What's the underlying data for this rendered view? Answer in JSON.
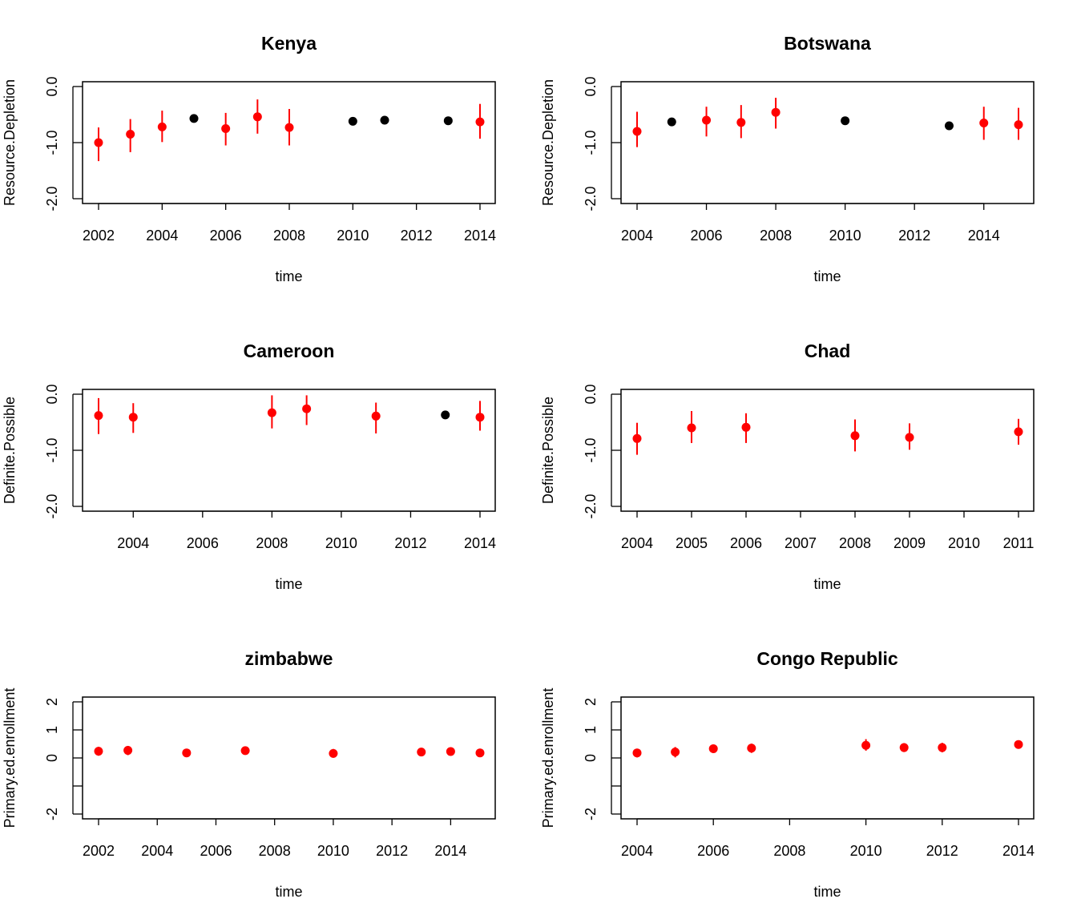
{
  "colors": {
    "highlight": "#ff0000",
    "normal": "#000000"
  },
  "chart_data": [
    {
      "type": "scatter",
      "title": "Kenya",
      "xlabel": "time",
      "ylabel": "Resource.Depletion",
      "xlim": [
        2002,
        2014
      ],
      "ylim": [
        -2.0,
        0.0
      ],
      "xticks": [
        2002,
        2004,
        2006,
        2008,
        2010,
        2012,
        2014
      ],
      "yticks": [
        -2.0,
        -1.0,
        0.0
      ],
      "ytick_labels": [
        "-2.0",
        "-1.0",
        "0.0"
      ],
      "points": [
        {
          "x": 2002,
          "y": -1.0,
          "lo": -1.33,
          "hi": -0.73,
          "color": "red"
        },
        {
          "x": 2003,
          "y": -0.85,
          "lo": -1.17,
          "hi": -0.58,
          "color": "red"
        },
        {
          "x": 2004,
          "y": -0.72,
          "lo": -0.99,
          "hi": -0.43,
          "color": "red"
        },
        {
          "x": 2005,
          "y": -0.57,
          "color": "black"
        },
        {
          "x": 2006,
          "y": -0.75,
          "lo": -1.05,
          "hi": -0.47,
          "color": "red"
        },
        {
          "x": 2007,
          "y": -0.54,
          "lo": -0.84,
          "hi": -0.23,
          "color": "red"
        },
        {
          "x": 2008,
          "y": -0.73,
          "lo": -1.05,
          "hi": -0.4,
          "color": "red"
        },
        {
          "x": 2010,
          "y": -0.62,
          "color": "black"
        },
        {
          "x": 2011,
          "y": -0.6,
          "color": "black"
        },
        {
          "x": 2013,
          "y": -0.61,
          "color": "black"
        },
        {
          "x": 2014,
          "y": -0.63,
          "lo": -0.93,
          "hi": -0.31,
          "color": "red"
        }
      ]
    },
    {
      "type": "scatter",
      "title": "Botswana",
      "xlabel": "time",
      "ylabel": "Resource.Depletion",
      "xlim": [
        2004,
        2015
      ],
      "ylim": [
        -2.0,
        0.0
      ],
      "xticks": [
        2004,
        2006,
        2008,
        2010,
        2012,
        2014
      ],
      "yticks": [
        -2.0,
        -1.0,
        0.0
      ],
      "ytick_labels": [
        "-2.0",
        "-1.0",
        "0.0"
      ],
      "points": [
        {
          "x": 2004,
          "y": -0.8,
          "lo": -1.08,
          "hi": -0.45,
          "color": "red"
        },
        {
          "x": 2005,
          "y": -0.63,
          "color": "black"
        },
        {
          "x": 2006,
          "y": -0.6,
          "lo": -0.89,
          "hi": -0.36,
          "color": "red"
        },
        {
          "x": 2007,
          "y": -0.64,
          "lo": -0.92,
          "hi": -0.33,
          "color": "red"
        },
        {
          "x": 2008,
          "y": -0.46,
          "lo": -0.75,
          "hi": -0.2,
          "color": "red"
        },
        {
          "x": 2010,
          "y": -0.61,
          "color": "black"
        },
        {
          "x": 2013,
          "y": -0.7,
          "color": "black"
        },
        {
          "x": 2014,
          "y": -0.65,
          "lo": -0.95,
          "hi": -0.36,
          "color": "red"
        },
        {
          "x": 2015,
          "y": -0.68,
          "lo": -0.95,
          "hi": -0.38,
          "color": "red"
        }
      ]
    },
    {
      "type": "scatter",
      "title": "Cameroon",
      "xlabel": "time",
      "ylabel": "Definite.Possible",
      "xlim": [
        2003,
        2014
      ],
      "ylim": [
        -2.0,
        0.0
      ],
      "xticks": [
        2004,
        2006,
        2008,
        2010,
        2012,
        2014
      ],
      "yticks": [
        -2.0,
        -1.0,
        0.0
      ],
      "ytick_labels": [
        "-2.0",
        "-1.0",
        "0.0"
      ],
      "points": [
        {
          "x": 2003,
          "y": -0.38,
          "lo": -0.71,
          "hi": -0.07,
          "color": "red"
        },
        {
          "x": 2004,
          "y": -0.41,
          "lo": -0.69,
          "hi": -0.16,
          "color": "red"
        },
        {
          "x": 2008,
          "y": -0.33,
          "lo": -0.61,
          "hi": -0.02,
          "color": "red"
        },
        {
          "x": 2009,
          "y": -0.26,
          "lo": -0.55,
          "hi": -0.02,
          "color": "red"
        },
        {
          "x": 2011,
          "y": -0.39,
          "lo": -0.7,
          "hi": -0.15,
          "color": "red"
        },
        {
          "x": 2013,
          "y": -0.37,
          "color": "black"
        },
        {
          "x": 2014,
          "y": -0.41,
          "lo": -0.65,
          "hi": -0.12,
          "color": "red"
        }
      ]
    },
    {
      "type": "scatter",
      "title": "Chad",
      "xlabel": "time",
      "ylabel": "Definite.Possible",
      "xlim": [
        2004,
        2011
      ],
      "ylim": [
        -2.0,
        0.0
      ],
      "xticks": [
        2004,
        2005,
        2006,
        2007,
        2008,
        2009,
        2010,
        2011
      ],
      "yticks": [
        -2.0,
        -1.0,
        0.0
      ],
      "ytick_labels": [
        "-2.0",
        "-1.0",
        "0.0"
      ],
      "points": [
        {
          "x": 2004,
          "y": -0.79,
          "lo": -1.08,
          "hi": -0.51,
          "color": "red"
        },
        {
          "x": 2005,
          "y": -0.6,
          "lo": -0.87,
          "hi": -0.3,
          "color": "red"
        },
        {
          "x": 2006,
          "y": -0.59,
          "lo": -0.87,
          "hi": -0.34,
          "color": "red"
        },
        {
          "x": 2008,
          "y": -0.74,
          "lo": -1.02,
          "hi": -0.45,
          "color": "red"
        },
        {
          "x": 2009,
          "y": -0.77,
          "lo": -0.99,
          "hi": -0.52,
          "color": "red"
        },
        {
          "x": 2011,
          "y": -0.67,
          "lo": -0.9,
          "hi": -0.44,
          "color": "red"
        }
      ]
    },
    {
      "type": "scatter",
      "title": "zimbabwe",
      "xlabel": "time",
      "ylabel": "Primary.ed.enrollment",
      "xlim": [
        2002,
        2015
      ],
      "ylim": [
        -2,
        2
      ],
      "xticks": [
        2002,
        2004,
        2006,
        2008,
        2010,
        2012,
        2014
      ],
      "yticks": [
        -2,
        -1,
        0,
        1,
        2
      ],
      "ytick_labels": [
        "-2",
        "",
        "0",
        "1",
        "2"
      ],
      "points": [
        {
          "x": 2002,
          "y": 0.24,
          "lo": 0.08,
          "hi": 0.4,
          "color": "red"
        },
        {
          "x": 2003,
          "y": 0.27,
          "lo": 0.1,
          "hi": 0.43,
          "color": "red"
        },
        {
          "x": 2005,
          "y": 0.18,
          "lo": 0.04,
          "hi": 0.32,
          "color": "red"
        },
        {
          "x": 2007,
          "y": 0.26,
          "lo": 0.13,
          "hi": 0.39,
          "color": "red"
        },
        {
          "x": 2010,
          "y": 0.16,
          "lo": 0.01,
          "hi": 0.32,
          "color": "red"
        },
        {
          "x": 2013,
          "y": 0.21,
          "lo": 0.07,
          "hi": 0.36,
          "color": "red"
        },
        {
          "x": 2014,
          "y": 0.23,
          "lo": 0.09,
          "hi": 0.38,
          "color": "red"
        },
        {
          "x": 2015,
          "y": 0.18,
          "lo": 0.04,
          "hi": 0.33,
          "color": "red"
        }
      ]
    },
    {
      "type": "scatter",
      "title": "Congo Republic",
      "xlabel": "time",
      "ylabel": "Primary.ed.enrollment",
      "xlim": [
        2004,
        2014
      ],
      "ylim": [
        -2,
        2
      ],
      "xticks": [
        2004,
        2006,
        2008,
        2010,
        2012,
        2014
      ],
      "yticks": [
        -2,
        -1,
        0,
        1,
        2
      ],
      "ytick_labels": [
        "-2",
        "",
        "0",
        "1",
        "2"
      ],
      "points": [
        {
          "x": 2004,
          "y": 0.18,
          "lo": 0.02,
          "hi": 0.33,
          "color": "red"
        },
        {
          "x": 2005,
          "y": 0.21,
          "lo": 0.02,
          "hi": 0.39,
          "color": "red"
        },
        {
          "x": 2006,
          "y": 0.33,
          "lo": 0.18,
          "hi": 0.48,
          "color": "red"
        },
        {
          "x": 2007,
          "y": 0.35,
          "lo": 0.18,
          "hi": 0.51,
          "color": "red"
        },
        {
          "x": 2010,
          "y": 0.45,
          "lo": 0.26,
          "hi": 0.67,
          "color": "red"
        },
        {
          "x": 2011,
          "y": 0.37,
          "lo": 0.21,
          "hi": 0.53,
          "color": "red"
        },
        {
          "x": 2012,
          "y": 0.37,
          "lo": 0.2,
          "hi": 0.54,
          "color": "red"
        },
        {
          "x": 2014,
          "y": 0.48,
          "lo": 0.34,
          "hi": 0.62,
          "color": "red"
        }
      ]
    }
  ]
}
